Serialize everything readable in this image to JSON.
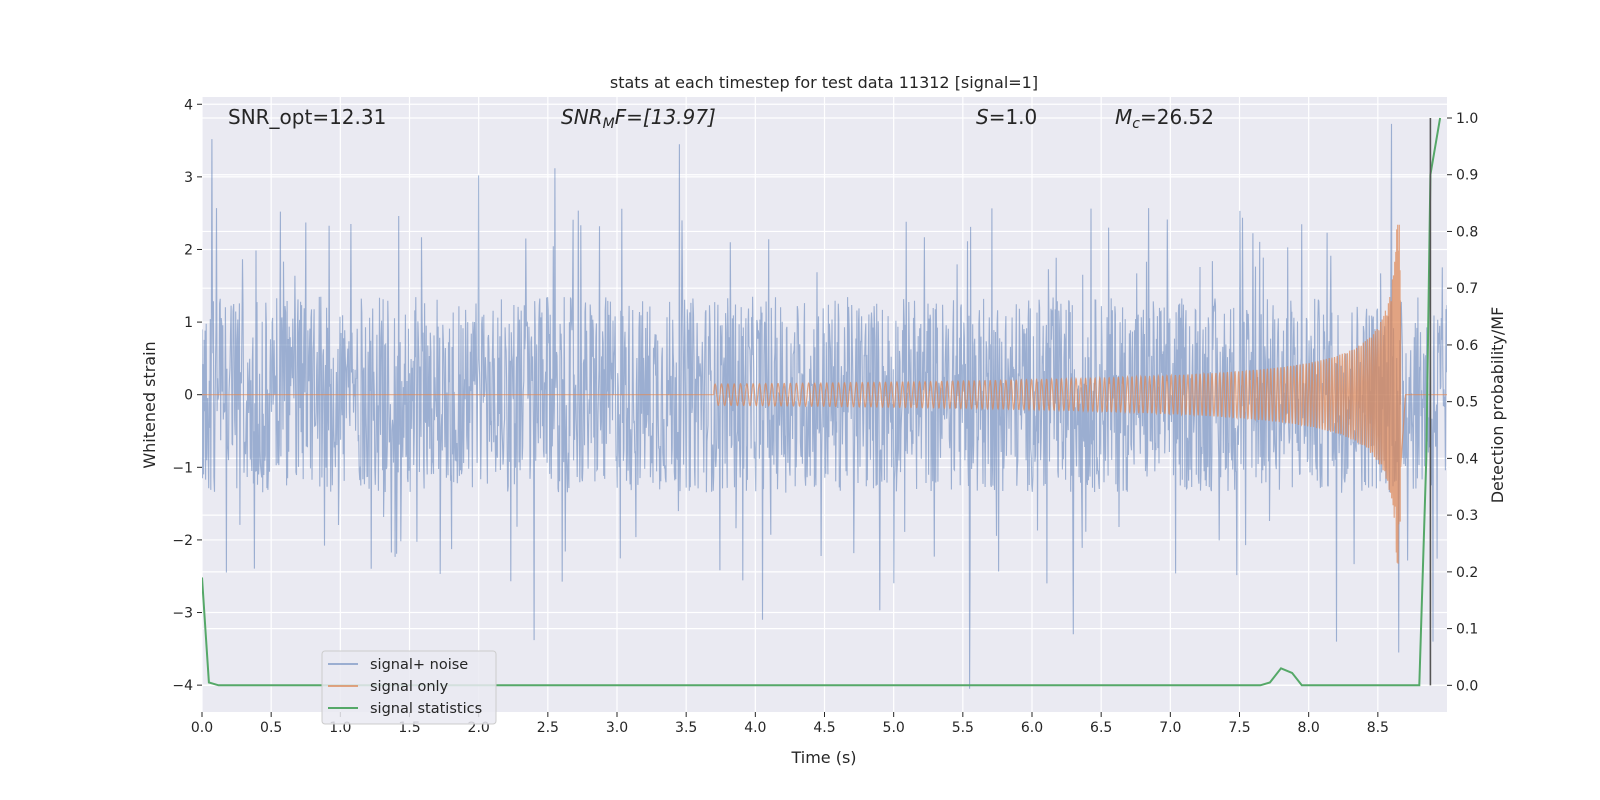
{
  "chart_data": {
    "type": "line",
    "title": "stats at each timestep for test data 11312 [signal=1]",
    "xlabel": "Time (s)",
    "ylabel_left": "Whitened strain",
    "ylabel_right": "Detection probability/MF",
    "xlim": [
      0.0,
      9.0
    ],
    "ylim_left": [
      -4.37,
      4.1
    ],
    "ylim_right": [
      -0.047,
      1.037
    ],
    "x_ticks": [
      "0.0",
      "0.5",
      "1.0",
      "1.5",
      "2.0",
      "2.5",
      "3.0",
      "3.5",
      "4.0",
      "4.5",
      "5.0",
      "5.5",
      "6.0",
      "6.5",
      "7.0",
      "7.5",
      "8.0",
      "8.5"
    ],
    "y_ticks_left": [
      "−4",
      "−3",
      "−2",
      "−1",
      "0",
      "1",
      "2",
      "3",
      "4"
    ],
    "y_ticks_right": [
      "0.0",
      "0.1",
      "0.2",
      "0.3",
      "0.4",
      "0.5",
      "0.6",
      "0.7",
      "0.8",
      "0.9",
      "1.0"
    ],
    "grid": true,
    "legend_position": "lower-left",
    "annotations": {
      "snr_opt": "SNR_opt=12.31",
      "snr_mf": {
        "main": "SNR",
        "sub": "M",
        "rest": "F=[13.97]"
      },
      "s_value": {
        "sym": "S",
        "rest": "=1.0"
      },
      "mc": {
        "sym": "M",
        "sub": "c",
        "rest": "=26.52"
      }
    },
    "series": [
      {
        "name": "signal+ noise",
        "axis": "left",
        "color": "#4c72b0",
        "description_values": {
          "band_low": -1.5,
          "band_high": 1.5,
          "peaks": [
            [
              0.07,
              3.52
            ],
            [
              2.0,
              3.02
            ],
            [
              2.55,
              3.12
            ],
            [
              3.45,
              3.45
            ],
            [
              8.6,
              3.73
            ],
            [
              2.4,
              -3.38
            ],
            [
              4.05,
              -3.1
            ],
            [
              4.9,
              -2.97
            ],
            [
              5.55,
              -4.05
            ],
            [
              6.3,
              -3.3
            ],
            [
              8.2,
              -3.4
            ],
            [
              8.65,
              -3.55
            ],
            [
              8.9,
              -3.4
            ]
          ]
        }
      },
      {
        "name": "signal only",
        "axis": "left",
        "color": "#dd8452",
        "chirp": {
          "start": 3.7,
          "peak_time": 8.65,
          "peak_amp_high": 2.35,
          "peak_amp_low": -2.2
        }
      },
      {
        "name": "signal statistics",
        "axis": "right",
        "color": "#55a868",
        "x": [
          0.0,
          0.05,
          0.12,
          7.65,
          7.72,
          7.8,
          7.88,
          7.95,
          8.8,
          8.85,
          8.88,
          8.95
        ],
        "y": [
          0.19,
          0.005,
          0.0,
          0.0,
          0.005,
          0.03,
          0.022,
          0.0,
          0.0,
          0.4,
          0.9,
          1.0
        ]
      }
    ],
    "vertical_line": {
      "x": 8.88,
      "color": "#555555"
    }
  }
}
